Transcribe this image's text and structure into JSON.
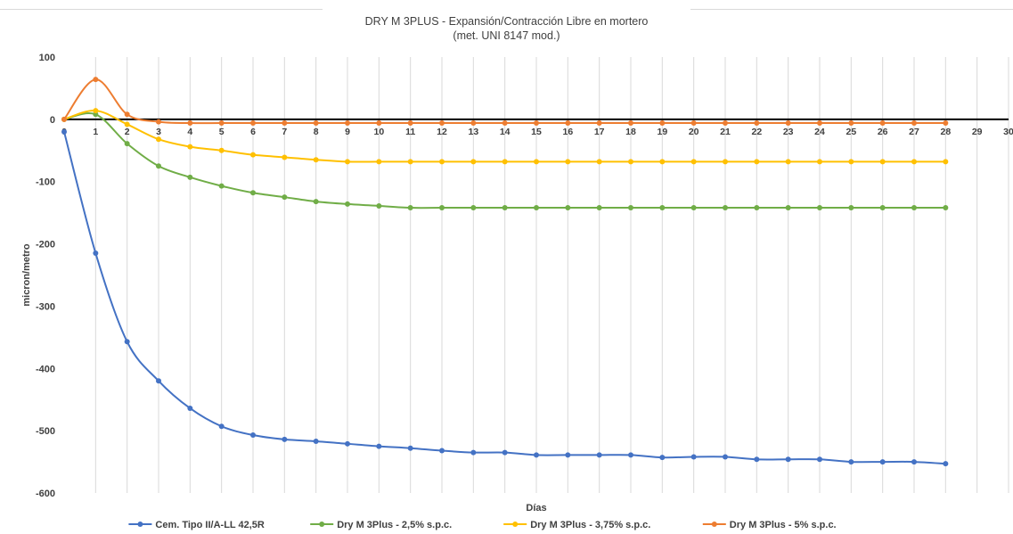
{
  "chart_data": {
    "type": "line",
    "title": "DRY M 3PLUS - Expansión/Contracción Libre en mortero",
    "subtitle": "(met. UNI 8147 mod.)",
    "xlabel": "Días",
    "ylabel": "micron/metro",
    "xlim": [
      0,
      30
    ],
    "ylim": [
      -600,
      100
    ],
    "yticks": [
      100,
      0,
      -100,
      -200,
      -300,
      -400,
      -500,
      -600
    ],
    "xticks": [
      0,
      1,
      2,
      3,
      4,
      5,
      6,
      7,
      8,
      9,
      10,
      11,
      12,
      13,
      14,
      15,
      16,
      17,
      18,
      19,
      20,
      21,
      22,
      23,
      24,
      25,
      26,
      27,
      28,
      29,
      30
    ],
    "grid": "vertical",
    "legend_position": "bottom",
    "series": [
      {
        "name": "Cem. Tipo II/A-LL 42,5R",
        "color": "#4472c4",
        "x": [
          0,
          1,
          2,
          3,
          4,
          5,
          6,
          7,
          8,
          9,
          10,
          11,
          12,
          13,
          14,
          15,
          16,
          17,
          18,
          19,
          20,
          21,
          22,
          23,
          24,
          25,
          26,
          27,
          28
        ],
        "values": [
          -20,
          -215,
          -357,
          -420,
          -464,
          -493,
          -507,
          -514,
          -517,
          -521,
          -525,
          -528,
          -532,
          -535,
          -535,
          -539,
          -539,
          -539,
          -539,
          -543,
          -542,
          -542,
          -546,
          -546,
          -546,
          -550,
          -550,
          -550,
          -553
        ]
      },
      {
        "name": "Dry M 3Plus - 2,5% s.p.c.",
        "color": "#70ad47",
        "x": [
          0,
          1,
          2,
          3,
          4,
          5,
          6,
          7,
          8,
          9,
          10,
          11,
          12,
          13,
          14,
          15,
          16,
          17,
          18,
          19,
          20,
          21,
          22,
          23,
          24,
          25,
          26,
          27,
          28
        ],
        "values": [
          0,
          8,
          -39,
          -75,
          -93,
          -107,
          -118,
          -125,
          -132,
          -136,
          -139,
          -142,
          -142,
          -142,
          -142,
          -142,
          -142,
          -142,
          -142,
          -142,
          -142,
          -142,
          -142,
          -142,
          -142,
          -142,
          -142,
          -142,
          -142
        ]
      },
      {
        "name": "Dry M 3Plus - 3,75% s.p.c.",
        "color": "#ffc000",
        "x": [
          0,
          1,
          2,
          3,
          4,
          5,
          6,
          7,
          8,
          9,
          10,
          11,
          12,
          13,
          14,
          15,
          16,
          17,
          18,
          19,
          20,
          21,
          22,
          23,
          24,
          25,
          26,
          27,
          28
        ],
        "values": [
          0,
          14,
          -8,
          -32,
          -44,
          -50,
          -57,
          -61,
          -65,
          -68,
          -68,
          -68,
          -68,
          -68,
          -68,
          -68,
          -68,
          -68,
          -68,
          -68,
          -68,
          -68,
          -68,
          -68,
          -68,
          -68,
          -68,
          -68,
          -68
        ]
      },
      {
        "name": "Dry M 3Plus - 5% s.p.c.",
        "color": "#ed7d31",
        "x": [
          0,
          1,
          2,
          3,
          4,
          5,
          6,
          7,
          8,
          9,
          10,
          11,
          12,
          13,
          14,
          15,
          16,
          17,
          18,
          19,
          20,
          21,
          22,
          23,
          24,
          25,
          26,
          27,
          28
        ],
        "values": [
          0,
          64,
          8,
          -4,
          -6,
          -6,
          -6,
          -6,
          -6,
          -6,
          -6,
          -6,
          -6,
          -6,
          -6,
          -6,
          -6,
          -6,
          -6,
          -6,
          -6,
          -6,
          -6,
          -6,
          -6,
          -6,
          -6,
          -6,
          -6
        ]
      }
    ]
  }
}
